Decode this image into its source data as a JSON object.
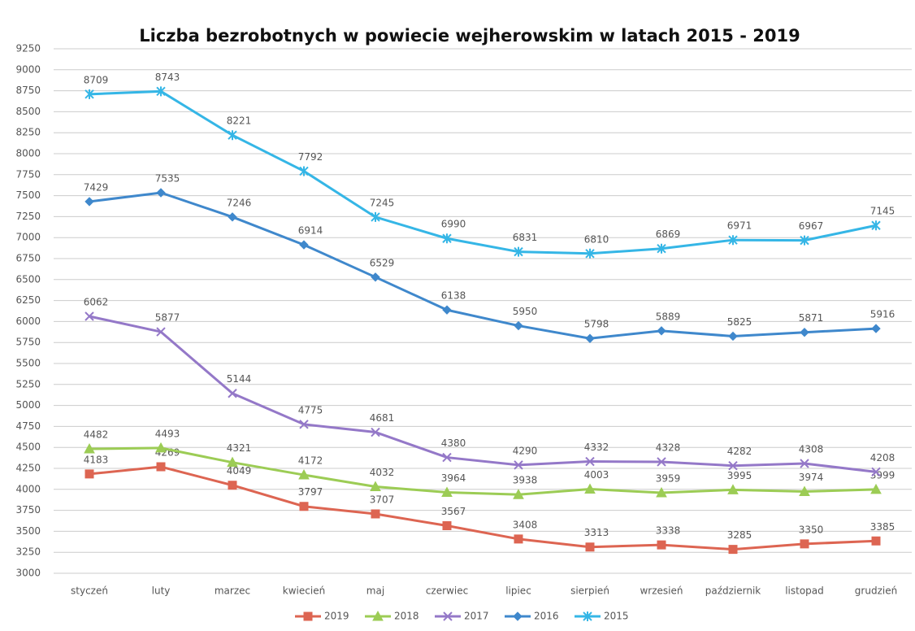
{
  "chart_data": {
    "type": "line",
    "title": "Liczba bezrobotnych w powiecie wejherowskim w latach 2015 - 2019",
    "categories": [
      "styczeń",
      "luty",
      "marzec",
      "kwiecień",
      "maj",
      "czerwiec",
      "lipiec",
      "sierpień",
      "wrzesień",
      "październik",
      "listopad",
      "grudzień"
    ],
    "series": [
      {
        "name": "2019",
        "color": "#dd6552",
        "marker": "square",
        "values": [
          4183,
          4269,
          4049,
          3797,
          3707,
          3567,
          3408,
          3313,
          3338,
          3285,
          3350,
          3385
        ]
      },
      {
        "name": "2018",
        "color": "#9ccc55",
        "marker": "triangle",
        "values": [
          4482,
          4493,
          4321,
          4172,
          4032,
          3964,
          3938,
          4003,
          3959,
          3995,
          3974,
          3999
        ]
      },
      {
        "name": "2017",
        "color": "#9478c8",
        "marker": "cross",
        "values": [
          6062,
          5877,
          5144,
          4775,
          4681,
          4380,
          4290,
          4332,
          4328,
          4282,
          4308,
          4208
        ]
      },
      {
        "name": "2016",
        "color": "#3f88cc",
        "marker": "diamond",
        "values": [
          7429,
          7535,
          7246,
          6914,
          6529,
          6138,
          5950,
          5798,
          5889,
          5825,
          5871,
          5916
        ]
      },
      {
        "name": "2015",
        "color": "#35b6e6",
        "marker": "star",
        "values": [
          8709,
          8743,
          8221,
          7792,
          7245,
          6990,
          6831,
          6810,
          6869,
          6971,
          6967,
          7145
        ]
      }
    ],
    "ylim": [
      3000,
      9250
    ],
    "yticks": [
      3000,
      3250,
      3500,
      3750,
      4000,
      4250,
      4500,
      4750,
      5000,
      5250,
      5500,
      5750,
      6000,
      6250,
      6500,
      6750,
      7000,
      7250,
      7500,
      7750,
      8000,
      8250,
      8500,
      8750,
      9000,
      9250
    ],
    "grid": true,
    "legend": "bottom"
  }
}
